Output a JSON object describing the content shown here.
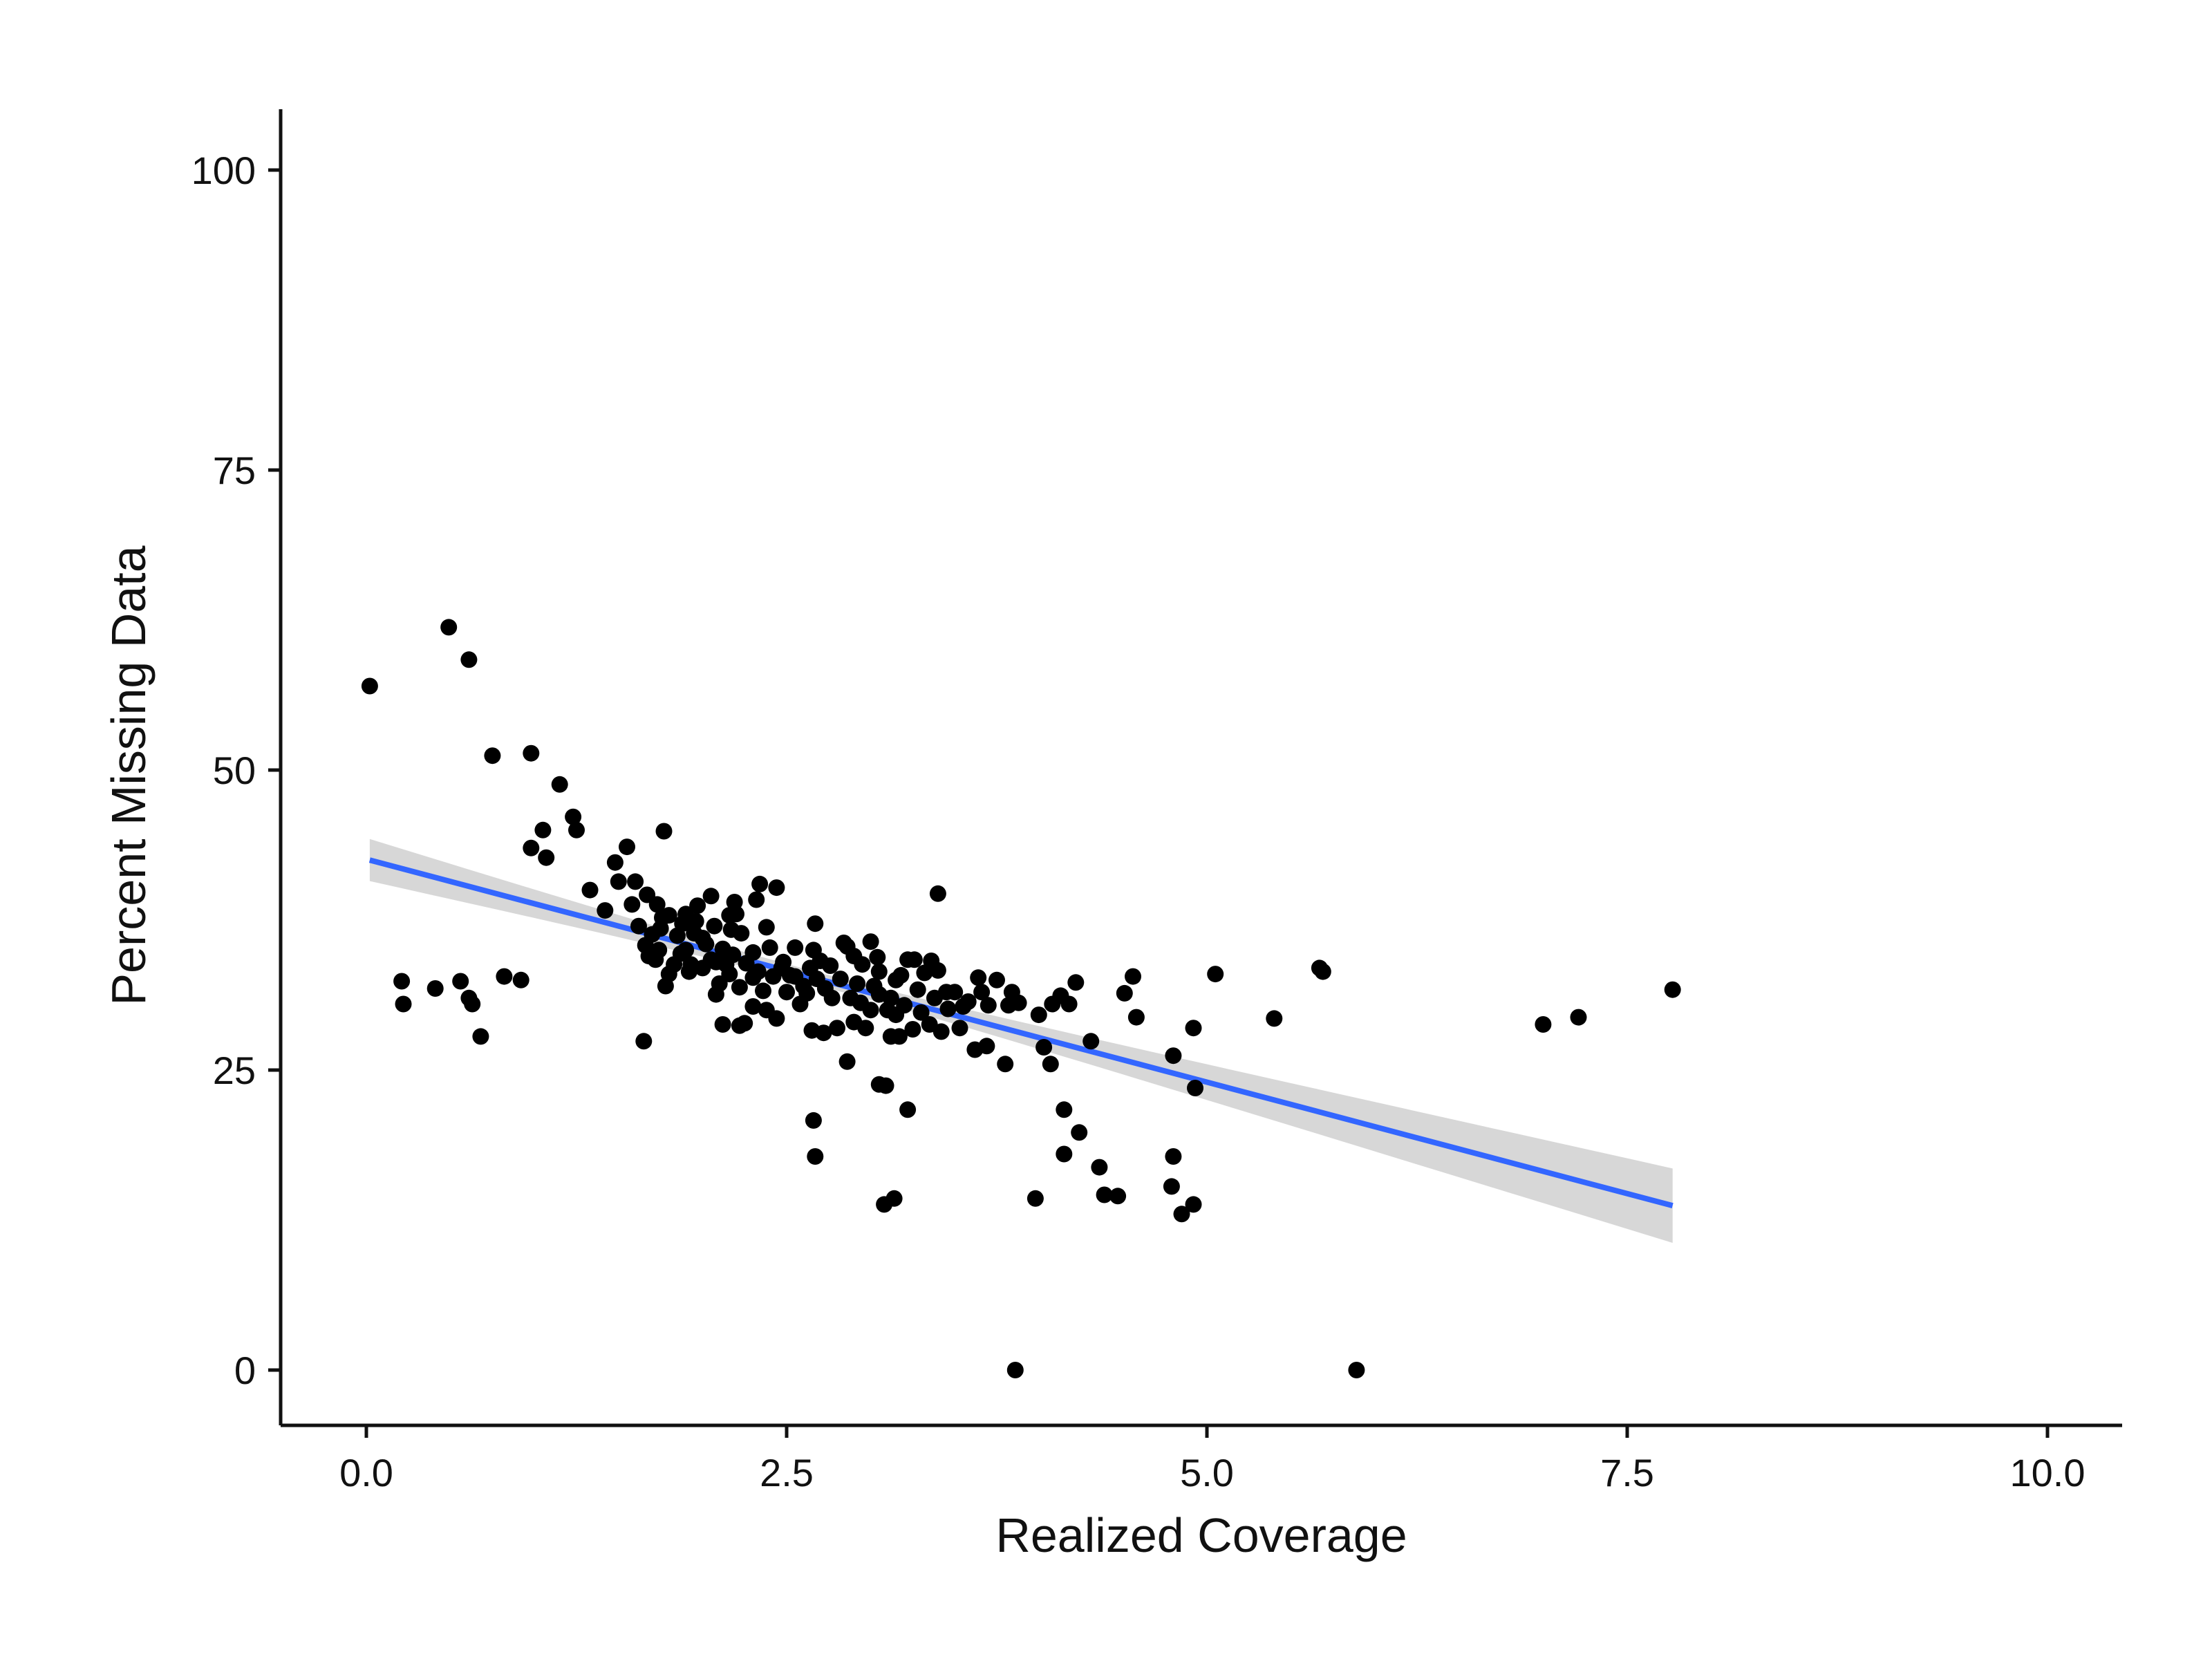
{
  "chart_data": {
    "type": "scatter",
    "title": "",
    "xlabel": "Realized Coverage",
    "ylabel": "Percent Missing Data",
    "xlim": [
      -0.25,
      10.25
    ],
    "ylim": [
      -5,
      105
    ],
    "xticks": [
      0.0,
      2.5,
      5.0,
      7.5,
      10.0
    ],
    "xtick_labels": [
      "0.0",
      "2.5",
      "5.0",
      "7.5",
      "10.0"
    ],
    "yticks": [
      0,
      25,
      50,
      75,
      100
    ],
    "ytick_labels": [
      "0",
      "25",
      "50",
      "75",
      "100"
    ],
    "grid": false,
    "legend": "none",
    "colors": {
      "points": "#000000",
      "fit_line": "#3366ff",
      "confidence_band": "#d3d3d3",
      "axis": "#111111"
    },
    "fit": {
      "method": "linear",
      "x_range": [
        0.02,
        7.77
      ],
      "y_at_start": 42.5,
      "y_at_end": 13.7,
      "ci_at_start": [
        40.8,
        44.3
      ],
      "ci_at_end": [
        10.6,
        16.8
      ]
    },
    "points": [
      [
        0.02,
        57.0
      ],
      [
        0.49,
        61.9
      ],
      [
        0.61,
        59.2
      ],
      [
        0.75,
        51.2
      ],
      [
        0.98,
        51.4
      ],
      [
        1.15,
        48.8
      ],
      [
        1.23,
        46.1
      ],
      [
        1.25,
        45.0
      ],
      [
        1.05,
        45.0
      ],
      [
        0.98,
        43.5
      ],
      [
        1.07,
        42.7
      ],
      [
        1.55,
        43.6
      ],
      [
        1.77,
        44.9
      ],
      [
        1.48,
        42.3
      ],
      [
        1.33,
        40.0
      ],
      [
        1.42,
        38.3
      ],
      [
        1.5,
        40.7
      ],
      [
        1.6,
        40.7
      ],
      [
        1.58,
        38.8
      ],
      [
        1.67,
        39.6
      ],
      [
        1.73,
        38.8
      ],
      [
        1.75,
        36.8
      ],
      [
        1.62,
        37.0
      ],
      [
        1.8,
        37.9
      ],
      [
        1.9,
        38.0
      ],
      [
        1.97,
        38.7
      ],
      [
        2.05,
        39.5
      ],
      [
        2.19,
        39.0
      ],
      [
        2.32,
        39.2
      ],
      [
        2.34,
        40.5
      ],
      [
        2.44,
        40.2
      ],
      [
        2.2,
        38.0
      ],
      [
        2.17,
        36.7
      ],
      [
        2.23,
        36.4
      ],
      [
        2.38,
        36.9
      ],
      [
        2.4,
        35.2
      ],
      [
        2.48,
        34.0
      ],
      [
        2.3,
        34.8
      ],
      [
        2.12,
        35.1
      ],
      [
        2.05,
        34.2
      ],
      [
        1.9,
        35.0
      ],
      [
        1.85,
        36.2
      ],
      [
        1.95,
        36.4
      ],
      [
        2.0,
        36.0
      ],
      [
        2.0,
        33.5
      ],
      [
        1.93,
        33.8
      ],
      [
        1.87,
        34.7
      ],
      [
        1.83,
        33.8
      ],
      [
        1.8,
        33.0
      ],
      [
        1.78,
        32.0
      ],
      [
        1.72,
        34.2
      ],
      [
        1.66,
        35.4
      ],
      [
        1.7,
        36.3
      ],
      [
        2.1,
        32.2
      ],
      [
        2.16,
        33.0
      ],
      [
        2.22,
        31.9
      ],
      [
        2.3,
        32.7
      ],
      [
        2.36,
        31.6
      ],
      [
        2.42,
        32.8
      ],
      [
        2.5,
        31.5
      ],
      [
        2.55,
        32.8
      ],
      [
        2.55,
        35.2
      ],
      [
        2.64,
        33.5
      ],
      [
        2.68,
        32.6
      ],
      [
        2.66,
        35.0
      ],
      [
        2.7,
        34.1
      ],
      [
        2.67,
        37.2
      ],
      [
        2.76,
        33.7
      ],
      [
        2.84,
        35.6
      ],
      [
        2.86,
        35.3
      ],
      [
        2.9,
        34.5
      ],
      [
        2.95,
        33.8
      ],
      [
        3.0,
        35.7
      ],
      [
        3.04,
        34.4
      ],
      [
        3.05,
        33.2
      ],
      [
        3.15,
        32.5
      ],
      [
        3.22,
        34.2
      ],
      [
        3.26,
        34.2
      ],
      [
        3.32,
        33.1
      ],
      [
        3.36,
        34.1
      ],
      [
        3.4,
        33.3
      ],
      [
        3.45,
        31.5
      ],
      [
        3.5,
        31.5
      ],
      [
        3.58,
        30.7
      ],
      [
        3.64,
        32.7
      ],
      [
        3.66,
        31.5
      ],
      [
        3.7,
        30.4
      ],
      [
        3.75,
        32.5
      ],
      [
        3.82,
        30.4
      ],
      [
        3.84,
        31.5
      ],
      [
        3.88,
        30.6
      ],
      [
        3.4,
        39.7
      ],
      [
        2.77,
        31.0
      ],
      [
        2.88,
        31.0
      ],
      [
        2.94,
        30.6
      ],
      [
        3.0,
        30.0
      ],
      [
        3.05,
        31.3
      ],
      [
        3.1,
        30.0
      ],
      [
        3.15,
        29.6
      ],
      [
        3.2,
        30.4
      ],
      [
        3.25,
        28.4
      ],
      [
        3.3,
        29.8
      ],
      [
        3.35,
        28.8
      ],
      [
        3.42,
        28.2
      ],
      [
        3.53,
        28.5
      ],
      [
        2.65,
        28.3
      ],
      [
        2.72,
        28.1
      ],
      [
        2.8,
        28.5
      ],
      [
        2.9,
        29.0
      ],
      [
        2.97,
        28.5
      ],
      [
        3.12,
        27.8
      ],
      [
        3.17,
        27.8
      ],
      [
        2.08,
        31.3
      ],
      [
        2.12,
        28.8
      ],
      [
        2.22,
        28.7
      ],
      [
        2.25,
        28.9
      ],
      [
        2.44,
        29.3
      ],
      [
        2.58,
        30.5
      ],
      [
        2.62,
        31.4
      ],
      [
        2.3,
        30.3
      ],
      [
        2.38,
        30.0
      ],
      [
        3.62,
        26.7
      ],
      [
        3.69,
        27.0
      ],
      [
        3.8,
        25.5
      ],
      [
        2.86,
        25.7
      ],
      [
        4.0,
        29.6
      ],
      [
        4.08,
        30.5
      ],
      [
        4.13,
        31.2
      ],
      [
        4.18,
        30.5
      ],
      [
        4.22,
        32.3
      ],
      [
        4.03,
        26.9
      ],
      [
        4.07,
        25.5
      ],
      [
        4.31,
        27.4
      ],
      [
        4.51,
        31.4
      ],
      [
        4.56,
        32.8
      ],
      [
        4.58,
        29.4
      ],
      [
        4.8,
        26.2
      ],
      [
        4.92,
        28.5
      ],
      [
        4.93,
        23.5
      ],
      [
        5.05,
        33.0
      ],
      [
        5.4,
        29.3
      ],
      [
        5.67,
        33.5
      ],
      [
        5.69,
        33.2
      ],
      [
        2.66,
        20.8
      ],
      [
        2.67,
        17.8
      ],
      [
        3.05,
        23.8
      ],
      [
        3.09,
        23.7
      ],
      [
        3.22,
        21.7
      ],
      [
        4.15,
        21.7
      ],
      [
        4.24,
        19.8
      ],
      [
        4.15,
        18.0
      ],
      [
        4.36,
        16.9
      ],
      [
        4.39,
        14.6
      ],
      [
        4.47,
        14.5
      ],
      [
        4.8,
        17.8
      ],
      [
        4.79,
        15.3
      ],
      [
        4.85,
        13.0
      ],
      [
        4.92,
        13.8
      ],
      [
        3.08,
        13.8
      ],
      [
        3.14,
        14.3
      ],
      [
        3.98,
        14.3
      ],
      [
        0.21,
        32.4
      ],
      [
        0.22,
        30.5
      ],
      [
        0.41,
        31.8
      ],
      [
        0.56,
        32.4
      ],
      [
        0.61,
        31.0
      ],
      [
        0.63,
        30.5
      ],
      [
        0.68,
        27.8
      ],
      [
        0.82,
        32.8
      ],
      [
        0.92,
        32.5
      ],
      [
        1.65,
        27.4
      ],
      [
        3.86,
        0.0
      ],
      [
        5.89,
        0.0
      ],
      [
        7.0,
        28.8
      ],
      [
        7.21,
        29.4
      ],
      [
        7.77,
        31.7
      ],
      [
        1.68,
        34.5
      ],
      [
        1.74,
        35.0
      ],
      [
        1.92,
        33.2
      ],
      [
        2.02,
        35.5
      ],
      [
        2.08,
        34.0
      ],
      [
        2.14,
        33.8
      ],
      [
        2.18,
        34.6
      ],
      [
        2.26,
        33.9
      ],
      [
        2.33,
        33.2
      ],
      [
        2.47,
        33.5
      ],
      [
        2.52,
        32.9
      ],
      [
        2.6,
        32.0
      ],
      [
        2.73,
        31.8
      ],
      [
        2.82,
        32.6
      ],
      [
        2.92,
        32.2
      ],
      [
        3.02,
        32.0
      ],
      [
        3.12,
        31.0
      ],
      [
        3.18,
        32.9
      ],
      [
        3.28,
        31.7
      ],
      [
        3.38,
        31.0
      ],
      [
        3.46,
        30.1
      ],
      [
        3.55,
        30.3
      ],
      [
        1.88,
        37.2
      ],
      [
        1.96,
        37.4
      ],
      [
        2.07,
        37.0
      ],
      [
        2.16,
        37.9
      ],
      [
        1.76,
        37.7
      ]
    ]
  }
}
